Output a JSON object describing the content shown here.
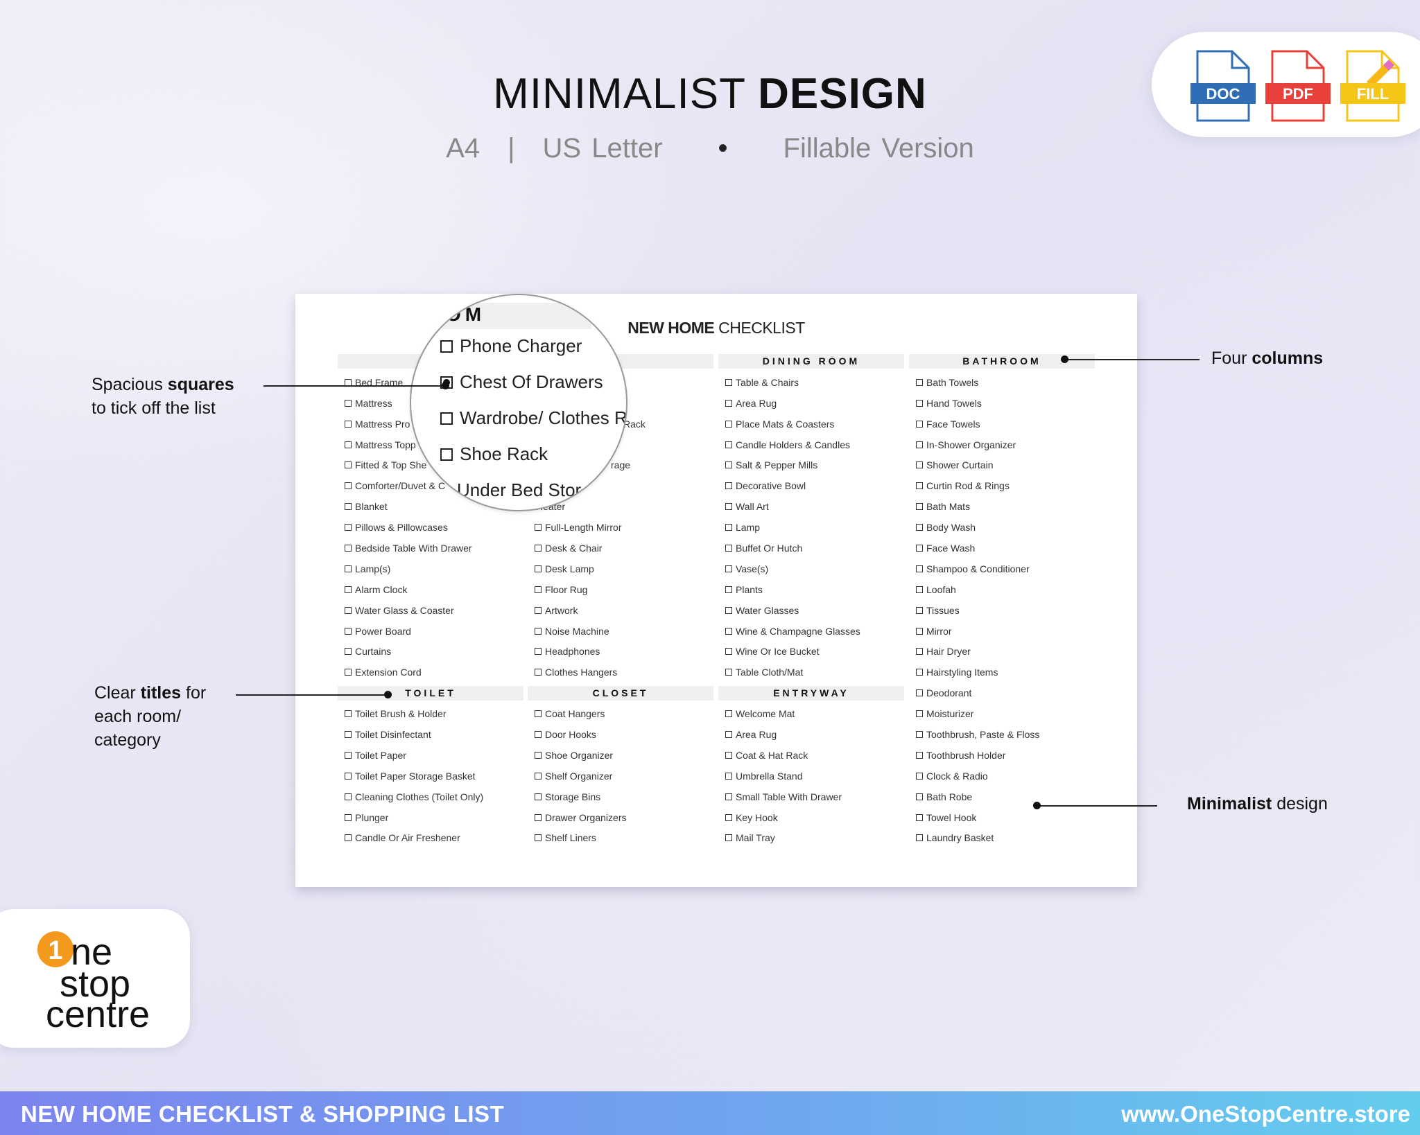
{
  "header": {
    "title_light": "MINIMALIST ",
    "title_bold": "DESIGN",
    "subtitle": [
      "A4",
      "|",
      "US Letter",
      "•",
      "Fillable Version"
    ]
  },
  "format_icons": [
    {
      "label": "DOC",
      "color": "#2f6db5"
    },
    {
      "label": "PDF",
      "color": "#e8403a"
    },
    {
      "label": "FILL",
      "color": "#f5c518"
    }
  ],
  "document": {
    "title_bold": "NEW HOME",
    "title_light": " CHECKLIST",
    "columns": [
      {
        "sections": [
          {
            "title": "",
            "items": [
              "Bed Frame",
              "Mattress",
              "Mattress Pro",
              "Mattress Topp",
              "Fitted & Top She",
              "Comforter/Duvet & C",
              "Blanket",
              "Pillows & Pillowcases",
              "Bedside Table With Drawer",
              "Lamp(s)",
              "Alarm Clock",
              "Water Glass & Coaster",
              "Power Board",
              "Curtains",
              "Extension Cord"
            ]
          },
          {
            "title": "TOILET",
            "items": [
              "Toilet Brush & Holder",
              "Toilet Disinfectant",
              "Toilet Paper",
              "Toilet Paper Storage Basket",
              "Cleaning Clothes (Toilet Only)",
              "Plunger",
              "Candle Or Air Freshener"
            ]
          }
        ]
      },
      {
        "sections": [
          {
            "title": "",
            "items": [
              "",
              "",
              "Rack",
              "",
              "rage",
              "",
              "Heater",
              "Full-Length Mirror",
              "Desk & Chair",
              "Desk Lamp",
              "Floor Rug",
              "Artwork",
              "Noise Machine",
              "Headphones",
              "Clothes Hangers"
            ]
          },
          {
            "title": "CLOSET",
            "items": [
              "Coat Hangers",
              "Door Hooks",
              "Shoe Organizer",
              "Shelf Organizer",
              "Storage Bins",
              "Drawer Organizers",
              "Shelf Liners"
            ]
          }
        ]
      },
      {
        "sections": [
          {
            "title": "DINING ROOM",
            "items": [
              "Table & Chairs",
              "Area Rug",
              "Place Mats & Coasters",
              "Candle Holders & Candles",
              "Salt & Pepper Mills",
              "Decorative Bowl",
              "Wall Art",
              "Lamp",
              "Buffet Or Hutch",
              "Vase(s)",
              "Plants",
              "Water Glasses",
              "Wine & Champagne Glasses",
              "Wine Or Ice Bucket",
              "Table Cloth/Mat"
            ]
          },
          {
            "title": "ENTRYWAY",
            "items": [
              "Welcome Mat",
              "Area Rug",
              "Coat & Hat Rack",
              "Umbrella Stand",
              "Small Table With Drawer",
              "Key Hook",
              "Mail Tray"
            ]
          }
        ]
      },
      {
        "sections": [
          {
            "title": "BATHROOM",
            "items": [
              "Bath Towels",
              "Hand Towels",
              "Face Towels",
              "In-Shower Organizer",
              "Shower Curtain",
              "Curtin Rod & Rings",
              "Bath Mats",
              "Body Wash",
              "Face Wash",
              "Shampoo & Conditioner",
              "Loofah",
              "Tissues",
              "Mirror",
              "Hair Dryer",
              "Hairstyling Items",
              "Deodorant",
              "Moisturizer",
              "Toothbrush, Paste & Floss",
              "Toothbrush Holder",
              "Clock & Radio",
              "Bath Robe",
              "Towel Hook",
              "Laundry Basket"
            ]
          }
        ]
      }
    ]
  },
  "magnifier": {
    "header": "OM",
    "items": [
      {
        "label": "Phone Charger",
        "checked": false
      },
      {
        "label": "Chest Of Drawers",
        "checked": true
      },
      {
        "label": "Wardrobe/ Clothes Ra",
        "checked": false
      },
      {
        "label": "Shoe Rack",
        "checked": false
      },
      {
        "label": "Under Bed Stor",
        "checked": false
      }
    ]
  },
  "annotations": {
    "squares": {
      "line1_a": "Spacious ",
      "line1_b": "squares",
      "line2": "to tick off the list"
    },
    "columns": {
      "a": "Four ",
      "b": "columns"
    },
    "titles": {
      "line1_a": "Clear ",
      "line1_b": "titles",
      "line1_c": " for",
      "line2": "each room/",
      "line3": "category"
    },
    "minimalist": {
      "a": "Minimalist",
      "b": " design"
    }
  },
  "logo": {
    "text": "1ne stop centre",
    "accent": "#f39a1e"
  },
  "footer": {
    "left": "NEW HOME CHECKLIST & SHOPPING LIST",
    "right": "www.OneStopCentre.store"
  }
}
